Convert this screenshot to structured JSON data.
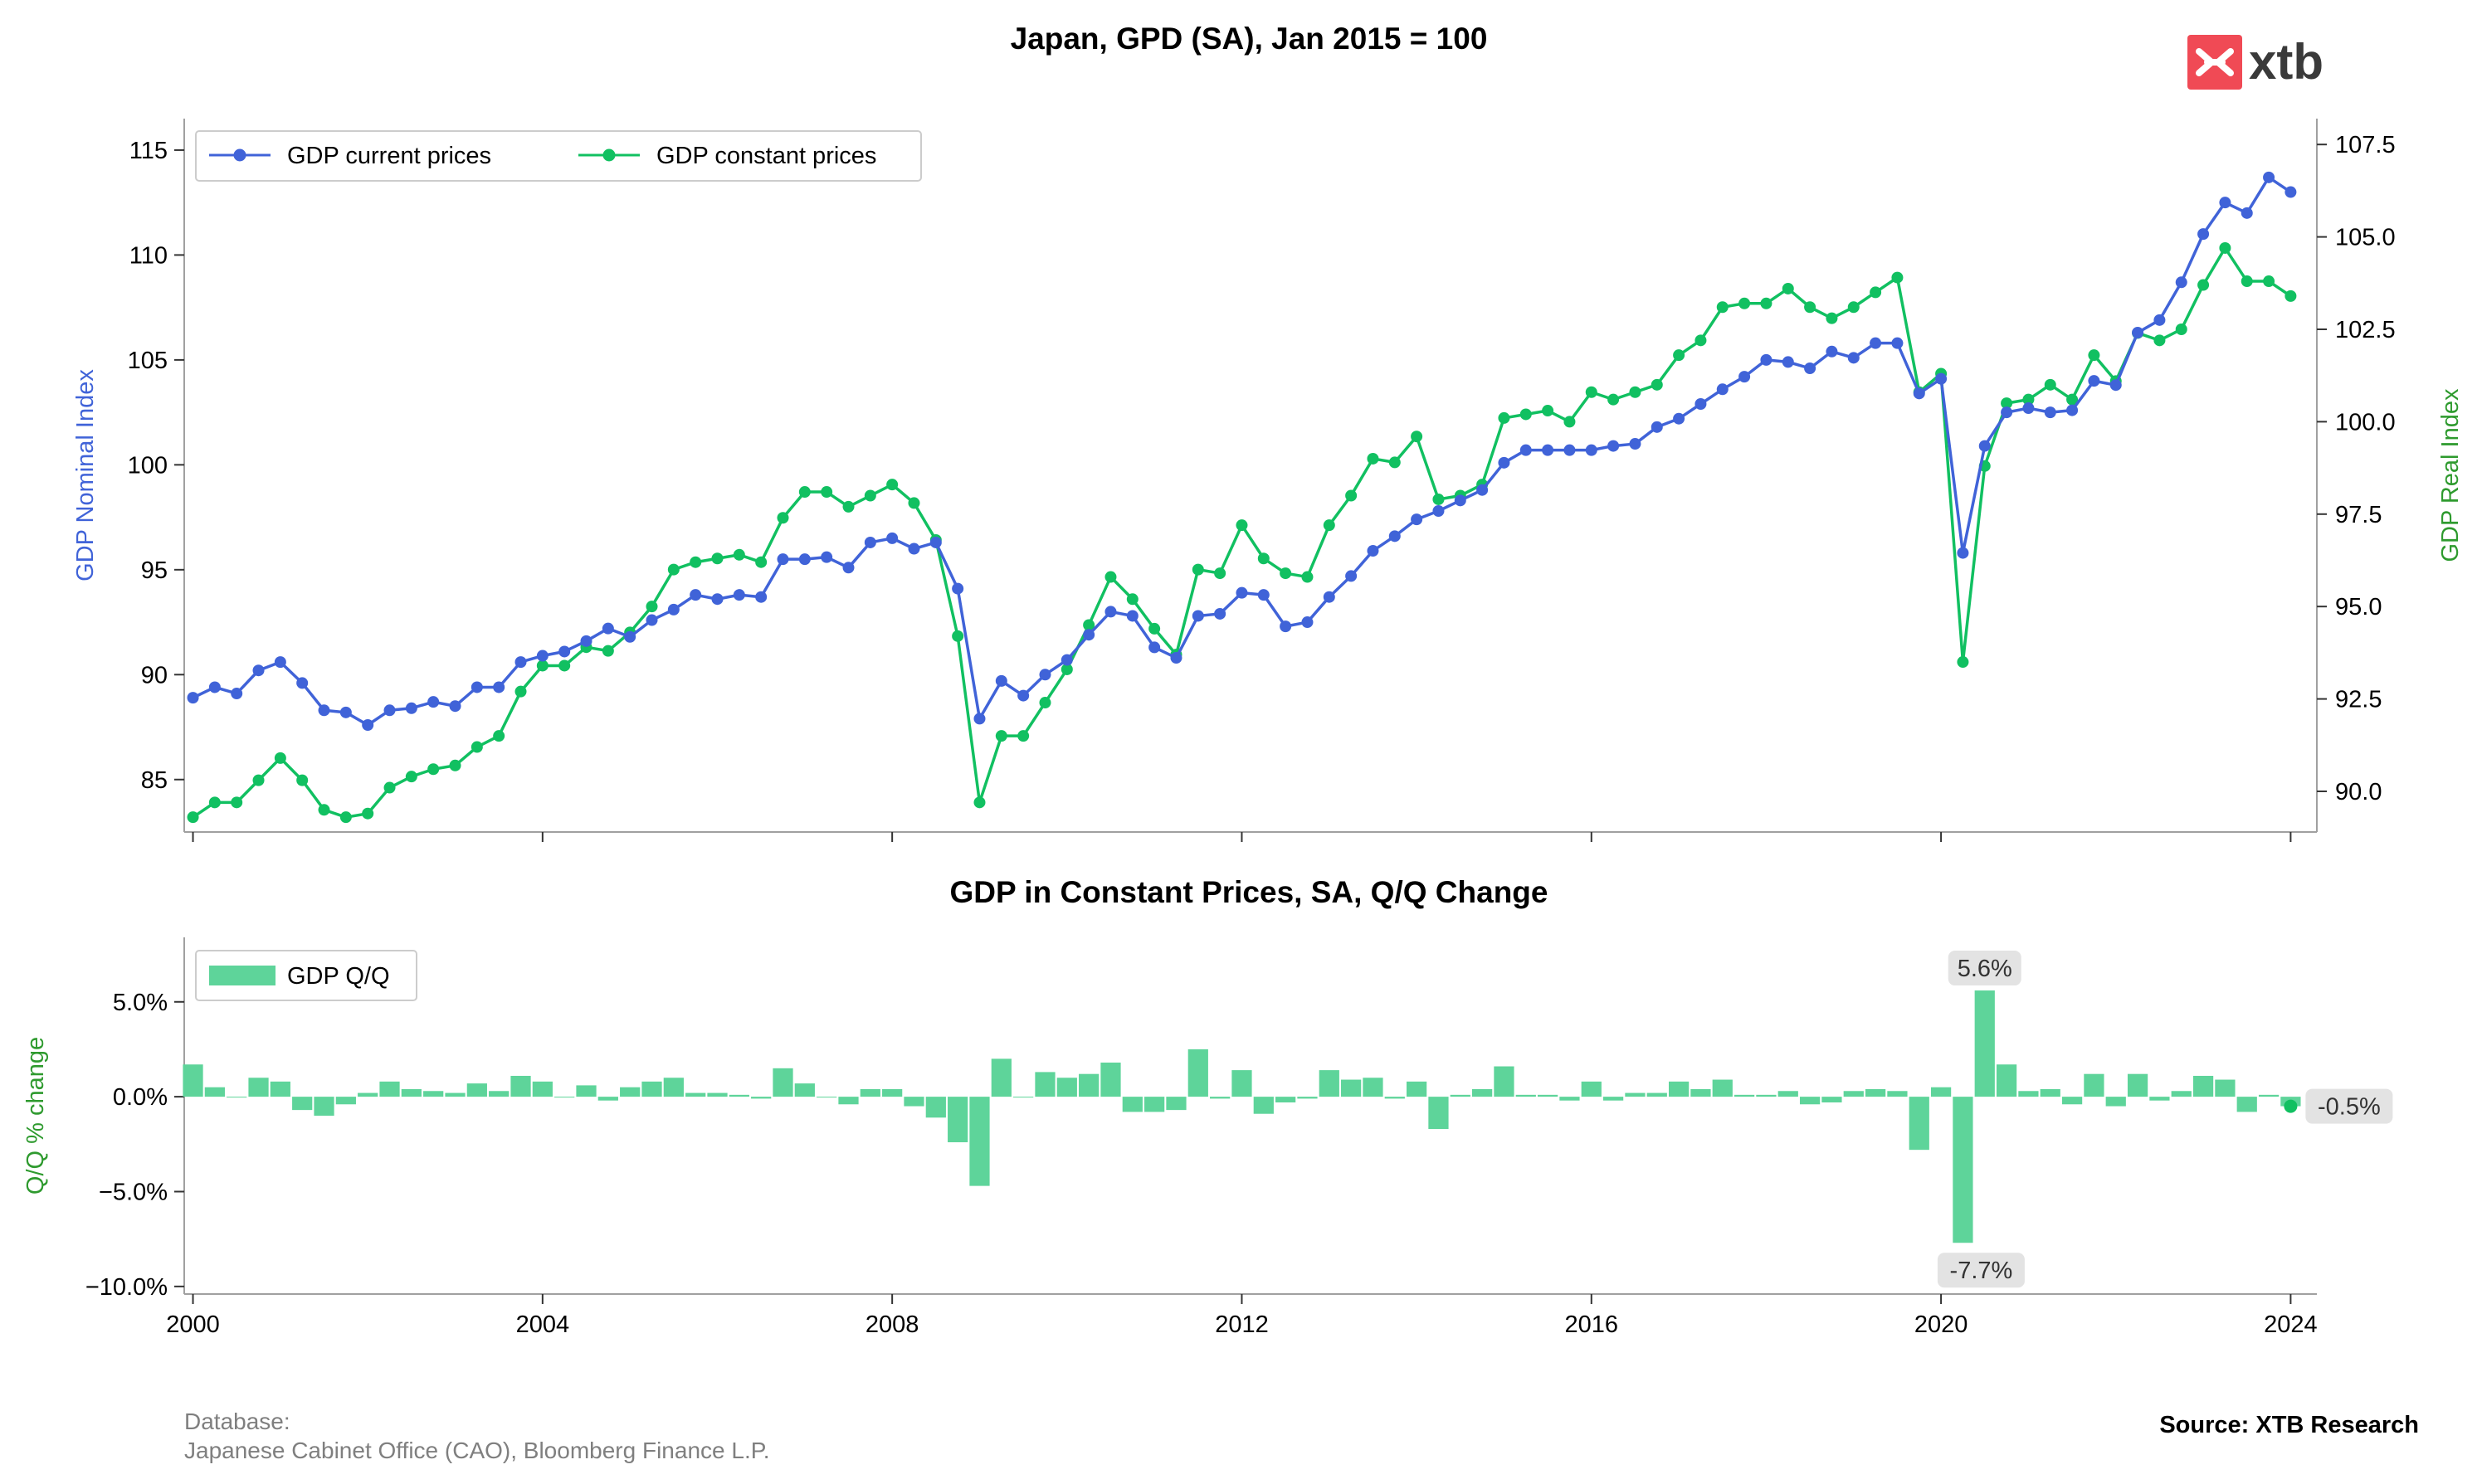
{
  "logo": {
    "text": "xtb",
    "color": "#f04a55"
  },
  "footer": {
    "database_label": "Database:",
    "database_value": "Japanese Cabinet Office (CAO), Bloomberg Finance L.P.",
    "source": "Source: XTB Research"
  },
  "colors": {
    "nominal": "#4063d8",
    "real": "#11c061",
    "bars": "#5ed49a"
  },
  "chart_data": [
    {
      "type": "line",
      "title": "Japan, GPD (SA), Jan 2015 = 100",
      "ylabel_left": "GDP Nominal Index",
      "ylabel_right": "GDP Real Index",
      "ylim_left": [
        82.5,
        116.5
      ],
      "ylim_right": [
        88.9,
        108.2
      ],
      "xlim": [
        1999.9,
        2024.3
      ],
      "x_ticks": [
        "2000",
        "2004",
        "2008",
        "2012",
        "2016",
        "2020",
        "2024"
      ],
      "yticks_left": [
        "85",
        "90",
        "95",
        "100",
        "105",
        "110",
        "115"
      ],
      "yticks_right": [
        "90.0",
        "92.5",
        "95.0",
        "97.5",
        "100.0",
        "102.5",
        "105.0",
        "107.5"
      ],
      "legend": [
        "GDP current prices",
        "GDP constant prices"
      ],
      "legend_position": "top-left",
      "x_start": 2000.0,
      "x_step": 0.25,
      "series": [
        {
          "name": "GDP current prices",
          "axis": "left",
          "values": [
            88.9,
            89.4,
            89.1,
            90.2,
            90.6,
            89.6,
            88.3,
            88.2,
            87.6,
            88.3,
            88.4,
            88.7,
            88.5,
            89.4,
            89.4,
            90.6,
            90.9,
            91.1,
            91.6,
            92.2,
            91.8,
            92.6,
            93.1,
            93.8,
            93.6,
            93.8,
            93.7,
            95.5,
            95.5,
            95.6,
            95.1,
            96.3,
            96.5,
            96.0,
            96.3,
            94.1,
            87.9,
            89.7,
            89.0,
            90.0,
            90.7,
            91.9,
            93.0,
            92.8,
            91.3,
            90.8,
            92.8,
            92.9,
            93.9,
            93.8,
            92.3,
            92.5,
            93.7,
            94.7,
            95.9,
            96.6,
            97.4,
            97.8,
            98.3,
            98.8,
            100.1,
            100.7,
            100.7,
            100.7,
            100.7,
            100.9,
            101.0,
            101.8,
            102.2,
            102.9,
            103.6,
            104.2,
            105.0,
            104.9,
            104.6,
            105.4,
            105.1,
            105.8,
            105.8,
            103.4,
            104.1,
            95.8,
            100.9,
            102.5,
            102.7,
            102.5,
            102.6,
            104.0,
            103.8,
            106.3,
            106.9,
            108.7,
            111.0,
            112.5,
            112.0,
            113.7,
            113.0
          ]
        },
        {
          "name": "GDP constant prices",
          "axis": "right",
          "values": [
            89.3,
            89.7,
            89.7,
            90.3,
            90.9,
            90.3,
            89.5,
            89.3,
            89.4,
            90.1,
            90.4,
            90.6,
            90.7,
            91.2,
            91.5,
            92.7,
            93.4,
            93.4,
            93.9,
            93.8,
            94.3,
            95.0,
            96.0,
            96.2,
            96.3,
            96.4,
            96.2,
            97.4,
            98.1,
            98.1,
            97.7,
            98.0,
            98.3,
            97.8,
            96.8,
            94.2,
            89.7,
            91.5,
            91.5,
            92.4,
            93.3,
            94.5,
            95.8,
            95.2,
            94.4,
            93.7,
            96.0,
            95.9,
            97.2,
            96.3,
            95.9,
            95.8,
            97.2,
            98.0,
            99.0,
            98.9,
            99.6,
            97.9,
            98.0,
            98.3,
            100.1,
            100.2,
            100.3,
            100.0,
            100.8,
            100.6,
            100.8,
            101.0,
            101.8,
            102.2,
            103.1,
            103.2,
            103.2,
            103.6,
            103.1,
            102.8,
            103.1,
            103.5,
            103.9,
            100.8,
            101.3,
            93.5,
            98.8,
            100.5,
            100.6,
            101.0,
            100.6,
            101.8,
            101.1,
            102.4,
            102.2,
            102.5,
            103.7,
            104.7,
            103.8,
            103.8,
            103.4
          ]
        }
      ]
    },
    {
      "type": "bar",
      "title": "GDP in Constant Prices, SA, Q/Q Change",
      "ylabel": "Q/Q % change",
      "ylim": [
        -10.4,
        8.4
      ],
      "yticks": [
        "5.0%",
        "0.0%",
        "−5.0%",
        "−10.0%"
      ],
      "x_ticks": [
        "2000",
        "2004",
        "2008",
        "2012",
        "2016",
        "2020",
        "2024"
      ],
      "legend": [
        "GDP Q/Q"
      ],
      "legend_position": "top-left",
      "x_start": 2000.0,
      "x_step": 0.25,
      "values": [
        1.7,
        0.5,
        0.0,
        1.0,
        0.8,
        -0.7,
        -1.0,
        -0.4,
        0.2,
        0.8,
        0.4,
        0.3,
        0.2,
        0.7,
        0.3,
        1.1,
        0.8,
        0.0,
        0.6,
        -0.2,
        0.5,
        0.8,
        1.0,
        0.2,
        0.2,
        0.1,
        -0.1,
        1.5,
        0.7,
        0.0,
        -0.4,
        0.4,
        0.4,
        -0.5,
        -1.1,
        -2.4,
        -4.7,
        2.0,
        0.0,
        1.3,
        1.0,
        1.2,
        1.8,
        -0.8,
        -0.8,
        -0.7,
        2.5,
        -0.1,
        1.4,
        -0.9,
        -0.3,
        -0.1,
        1.4,
        0.9,
        1.0,
        -0.1,
        0.8,
        -1.7,
        0.1,
        0.4,
        1.6,
        0.1,
        0.1,
        -0.2,
        0.8,
        -0.2,
        0.2,
        0.2,
        0.8,
        0.4,
        0.9,
        0.1,
        0.1,
        0.3,
        -0.4,
        -0.3,
        0.3,
        0.4,
        0.3,
        -2.8,
        0.5,
        -7.7,
        5.6,
        1.7,
        0.3,
        0.4,
        -0.4,
        1.2,
        -0.5,
        1.2,
        -0.2,
        0.3,
        1.1,
        0.9,
        -0.8,
        0.1,
        -0.5
      ],
      "annotations": [
        {
          "text": "5.6%",
          "x": 2020.5,
          "value": 5.6
        },
        {
          "text": "-7.7%",
          "x": 2020.25,
          "value": -7.7
        },
        {
          "text": "-0.5%",
          "x": 2024.0,
          "value": -0.5
        }
      ]
    }
  ]
}
